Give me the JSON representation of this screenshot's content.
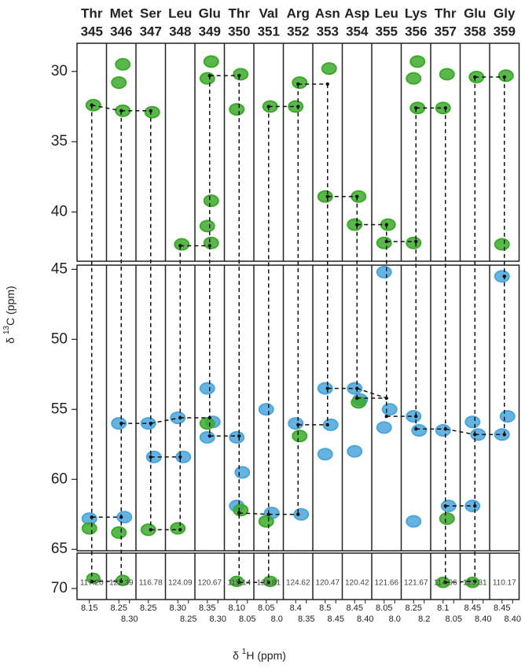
{
  "chart_data": {
    "type": "strip",
    "y_label": {
      "symbol": "δ",
      "sup": "13",
      "rest": "C (ppm)"
    },
    "x_label": {
      "symbol": "δ",
      "sup": "1",
      "rest": "H (ppm)"
    },
    "green_color": "#3daa2b",
    "blue_color": "#4ba6dc",
    "panels": [
      {
        "ylim": [
          28,
          43.5
        ],
        "yticks": [
          30,
          35,
          40
        ]
      },
      {
        "ylim": [
          44.7,
          65.1
        ],
        "yticks": [
          45,
          50,
          55,
          60,
          65
        ]
      },
      {
        "ylim": [
          66.5,
          71.1
        ],
        "yticks": [
          70
        ]
      }
    ],
    "strips": [
      {
        "residue": "Thr",
        "number": 345,
        "n15": {
          "value": 117.2,
          "label": "117.20"
        },
        "hticks": [
          8.15
        ],
        "walk": [
          32.4,
          62.7,
          69.3
        ],
        "green": [
          32.4,
          63.5,
          69.0
        ],
        "blue": [
          62.8
        ]
      },
      {
        "residue": "Met",
        "number": 346,
        "n15": 122.39,
        "hticks": [
          8.25,
          {
            "value": 8.3,
            "label": "8.30"
          }
        ],
        "walk": [
          32.8,
          56.0,
          62.7,
          69.3
        ],
        "green": [
          29.5,
          30.8,
          32.8,
          63.8,
          69.2
        ],
        "blue": [
          56.0,
          62.7
        ]
      },
      {
        "residue": "Ser",
        "number": 347,
        "n15": 116.78,
        "hticks": [
          8.25
        ],
        "walk": [
          32.8,
          56.0,
          58.4,
          63.6
        ],
        "green": [
          32.9,
          63.6
        ],
        "blue": [
          56.0,
          58.4
        ]
      },
      {
        "residue": "Leu",
        "number": 348,
        "n15": 124.09,
        "hticks": [
          {
            "value": 8.3,
            "label": "8.30"
          },
          8.25
        ],
        "walk": [
          42.4,
          55.6,
          58.4,
          63.6
        ],
        "green": [
          42.3,
          63.5
        ],
        "blue": [
          55.6,
          58.4
        ]
      },
      {
        "residue": "Glu",
        "number": 349,
        "n15": 120.67,
        "hticks": [
          8.35,
          {
            "value": 8.3,
            "label": "8.30"
          }
        ],
        "walk": [
          30.3,
          42.4,
          55.6,
          56.9
        ],
        "green": [
          29.3,
          30.5,
          39.2,
          41.0,
          42.2,
          56.0
        ],
        "blue": [
          53.5,
          55.9,
          57.0
        ]
      },
      {
        "residue": "Thr",
        "number": 350,
        "n15": 115.14,
        "hticks": [
          {
            "value": 8.1,
            "label": "8.10"
          },
          8.05
        ],
        "walk": [
          30.3,
          56.9,
          62.4,
          69.4
        ],
        "green": [
          30.2,
          32.7,
          62.2,
          69.3
        ],
        "blue": [
          57.0,
          59.5,
          61.9
        ]
      },
      {
        "residue": "Val",
        "number": 351,
        "n15": 122.81,
        "hticks": [
          8.05,
          {
            "value": 8,
            "label": "8.0"
          }
        ],
        "walk": [
          32.5,
          62.5,
          69.4
        ],
        "green": [
          32.5,
          63.0,
          69.3
        ],
        "blue": [
          55.0,
          62.4
        ]
      },
      {
        "residue": "Arg",
        "number": 352,
        "n15": 124.62,
        "hticks": [
          8.4,
          8.35
        ],
        "walk": [
          30.9,
          32.5,
          56.1,
          62.5
        ],
        "green": [
          30.8,
          32.5,
          56.9
        ],
        "blue": [
          56.0,
          62.5
        ]
      },
      {
        "residue": "Asn",
        "number": 353,
        "n15": 120.47,
        "hticks": [
          8.5,
          8.45
        ],
        "walk": [
          30.9,
          38.9,
          53.5,
          56.1
        ],
        "green": [
          29.8,
          38.9
        ],
        "blue": [
          53.5,
          56.1,
          58.2
        ]
      },
      {
        "residue": "Asp",
        "number": 354,
        "n15": 120.42,
        "hticks": [
          8.45,
          {
            "value": 8.4,
            "label": "8.40"
          }
        ],
        "walk": [
          38.9,
          40.9,
          53.5,
          54.2
        ],
        "green": [
          38.9,
          40.9,
          54.5
        ],
        "blue": [
          53.5,
          54.3,
          58.0
        ]
      },
      {
        "residue": "Leu",
        "number": 355,
        "n15": 121.66,
        "hticks": [
          8.05,
          {
            "value": 8,
            "label": "8.0"
          }
        ],
        "walk": [
          40.9,
          42.1,
          54.2,
          55.5
        ],
        "green": [
          40.9,
          42.2
        ],
        "blue": [
          45.2,
          55.0,
          56.3
        ]
      },
      {
        "residue": "Lys",
        "number": 356,
        "n15": 121.67,
        "hticks": [
          8.25,
          8.2
        ],
        "walk": [
          32.6,
          42.1,
          55.5,
          56.4
        ],
        "green": [
          29.3,
          30.5,
          32.6,
          42.2
        ],
        "blue": [
          55.5,
          56.5,
          63.0
        ]
      },
      {
        "residue": "Thr",
        "number": 357,
        "n15": 114.96,
        "hticks": [
          8.1,
          8.05
        ],
        "walk": [
          32.6,
          56.4,
          61.9,
          69.4
        ],
        "green": [
          30.2,
          32.6,
          62.8,
          69.4
        ],
        "blue": [
          56.5,
          61.9
        ]
      },
      {
        "residue": "Glu",
        "number": 358,
        "n15": 123.31,
        "hticks": [
          8.45,
          {
            "value": 8.4,
            "label": "8.40"
          }
        ],
        "walk": [
          30.4,
          56.8,
          61.9,
          69.3
        ],
        "green": [
          30.4,
          69.4
        ],
        "blue": [
          55.9,
          56.8,
          61.9
        ]
      },
      {
        "residue": "Gly",
        "number": 359,
        "n15": 110.17,
        "hticks": [
          8.45,
          {
            "value": 8.4,
            "label": "8.40"
          }
        ],
        "walk": [
          30.4,
          45.5,
          56.8
        ],
        "green": [
          30.3,
          42.3
        ],
        "blue": [
          45.5,
          55.5,
          56.8
        ]
      }
    ]
  }
}
